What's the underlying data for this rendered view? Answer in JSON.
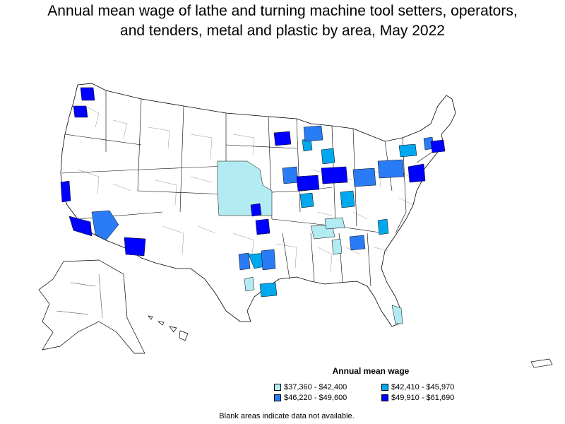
{
  "title": {
    "line1": "Annual mean wage of lathe and turning machine tool setters, operators,",
    "line2": "and tenders, metal and plastic by area, May 2022"
  },
  "legend": {
    "title": "Annual mean wage",
    "items": [
      {
        "label": "$37,360 - $42,400",
        "color": "#b2ebf2"
      },
      {
        "label": "$42,410 - $45,970",
        "color": "#00a8f0"
      },
      {
        "label": "$46,220 - $49,600",
        "color": "#2a7cf6"
      },
      {
        "label": "$49,910 - $61,690",
        "color": "#0000ff"
      }
    ]
  },
  "footnote": "Blank areas indicate data not available.",
  "colors": {
    "background": "#ffffff",
    "border": "#000000",
    "no_data": "#ffffff"
  }
}
